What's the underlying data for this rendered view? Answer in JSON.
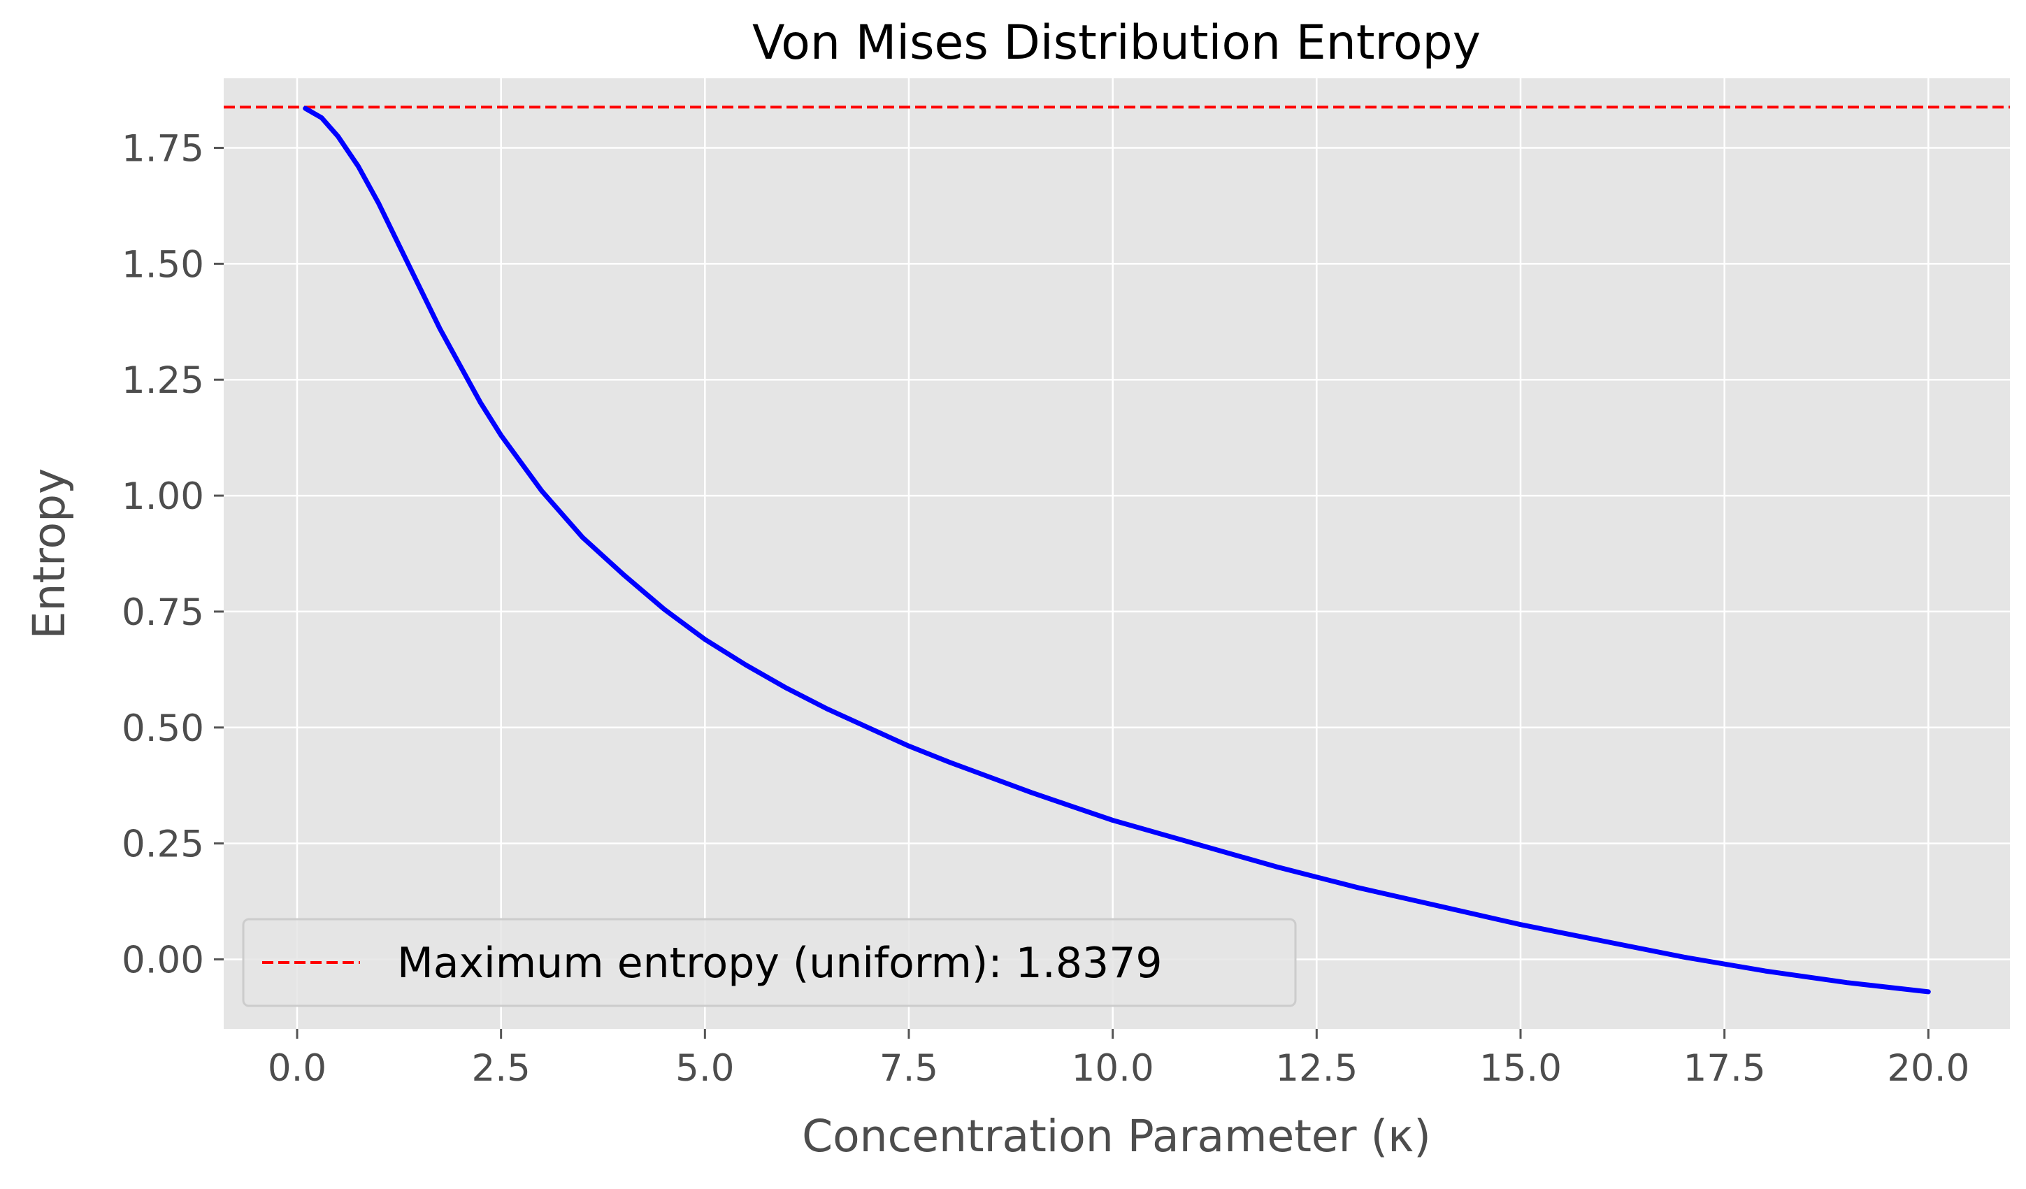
{
  "chart_data": {
    "type": "line",
    "title": "Von Mises Distribution Entropy",
    "xlabel": "Concentration Parameter (κ)",
    "ylabel": "Entropy",
    "xlim": [
      -0.9,
      21.0
    ],
    "ylim": [
      -0.15,
      1.9
    ],
    "xticks": [
      0.0,
      2.5,
      5.0,
      7.5,
      10.0,
      12.5,
      15.0,
      17.5,
      20.0
    ],
    "xtick_labels": [
      "0.0",
      "2.5",
      "5.0",
      "7.5",
      "10.0",
      "12.5",
      "15.0",
      "17.5",
      "20.0"
    ],
    "yticks": [
      0.0,
      0.25,
      0.5,
      0.75,
      1.0,
      1.25,
      1.5,
      1.75
    ],
    "ytick_labels": [
      "0.00",
      "0.25",
      "0.50",
      "0.75",
      "1.00",
      "1.25",
      "1.50",
      "1.75"
    ],
    "grid": true,
    "legend_position": "lower-left",
    "colors": {
      "plot_background": "#e5e5e5",
      "grid": "#ffffff",
      "series": "#0000ff",
      "reference_line": "#ff0000"
    },
    "series": [
      {
        "kind": "solid-line",
        "x": [
          0.1,
          0.3,
          0.5,
          0.75,
          1.0,
          1.25,
          1.5,
          1.75,
          2.0,
          2.25,
          2.5,
          2.75,
          3.0,
          3.5,
          4.0,
          4.5,
          5.0,
          5.5,
          6.0,
          6.5,
          7.0,
          7.5,
          8.0,
          9.0,
          10.0,
          11.0,
          12.0,
          13.0,
          14.0,
          15.0,
          16.0,
          17.0,
          18.0,
          19.0,
          20.0
        ],
        "y": [
          1.835,
          1.815,
          1.775,
          1.71,
          1.63,
          1.54,
          1.45,
          1.36,
          1.28,
          1.2,
          1.13,
          1.07,
          1.01,
          0.91,
          0.83,
          0.755,
          0.69,
          0.635,
          0.585,
          0.54,
          0.5,
          0.46,
          0.425,
          0.36,
          0.3,
          0.25,
          0.2,
          0.155,
          0.115,
          0.075,
          0.04,
          0.005,
          -0.025,
          -0.05,
          -0.07
        ]
      }
    ],
    "reference_line": {
      "kind": "dashed-horizontal",
      "y": 1.8379,
      "label": "Maximum entropy (uniform): 1.8379"
    }
  }
}
